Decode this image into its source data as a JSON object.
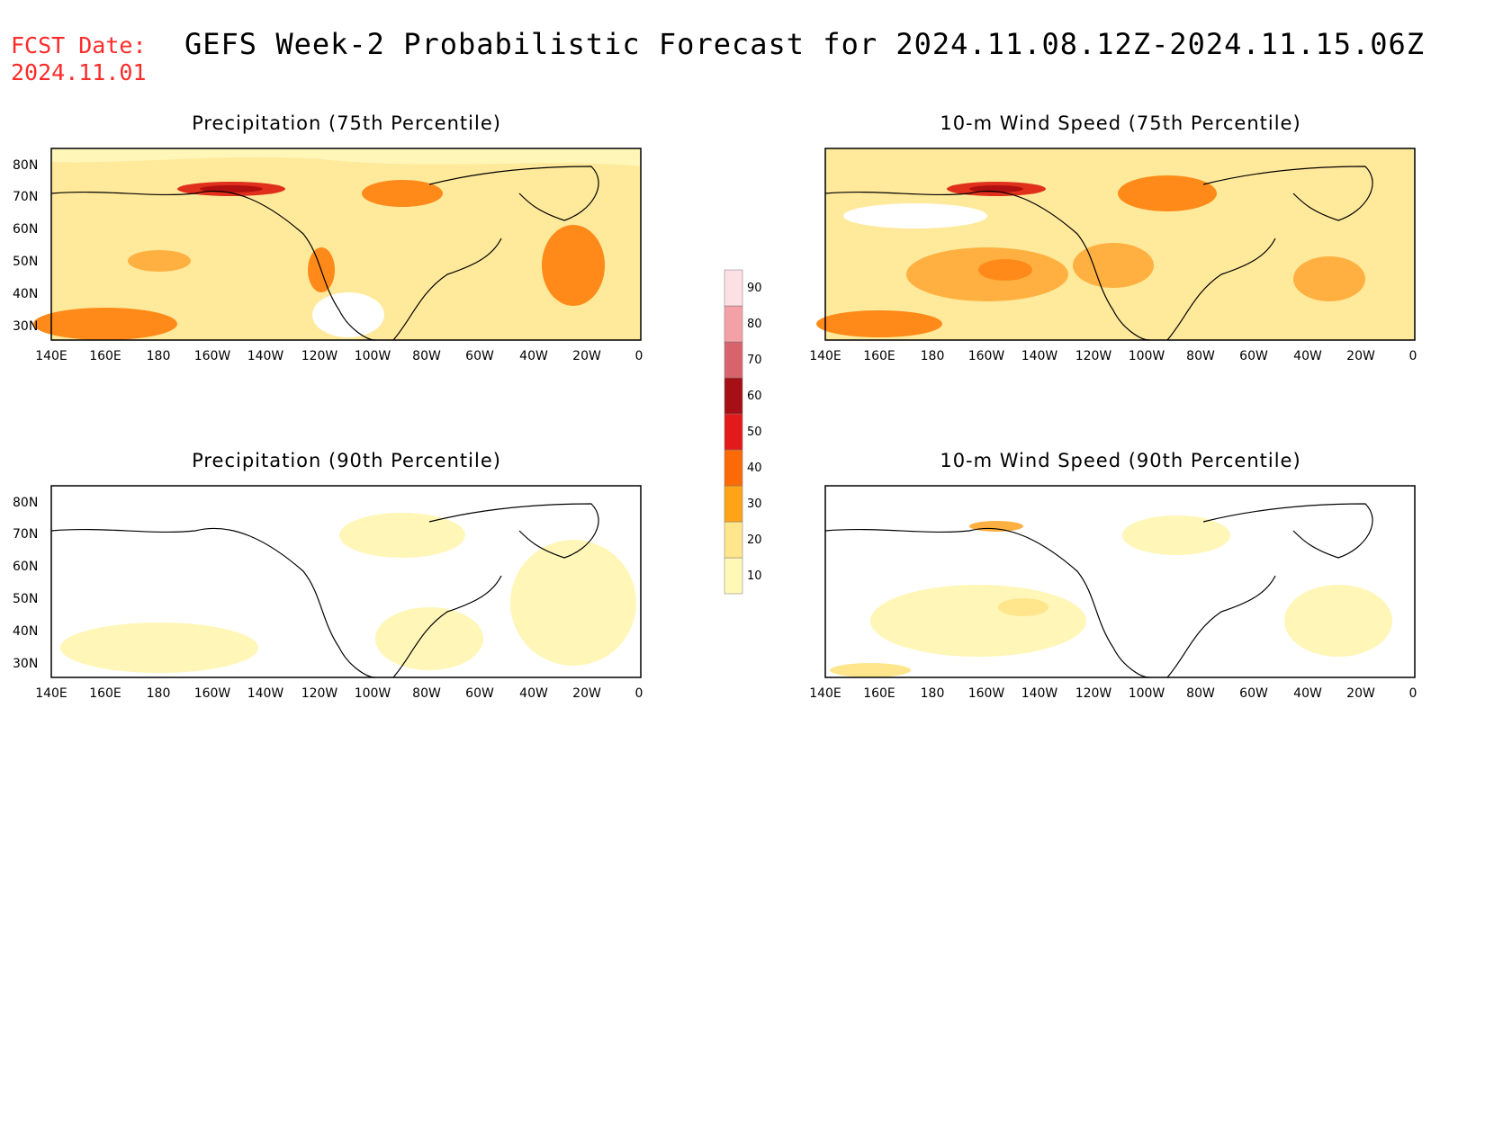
{
  "header": {
    "fcst_label": "FCST Date:",
    "fcst_date": "2024.11.01",
    "title": "GEFS Week-2 Probabilistic Forecast for 2024.11.08.12Z-2024.11.15.06Z"
  },
  "x_ticks": [
    "140E",
    "160E",
    "180",
    "160W",
    "140W",
    "120W",
    "100W",
    "80W",
    "60W",
    "40W",
    "20W",
    "0"
  ],
  "y_ticks": [
    "80N",
    "70N",
    "60N",
    "50N",
    "40N",
    "30N"
  ],
  "panels": [
    {
      "id": "precip75",
      "title": "Precipitation (75th Percentile)"
    },
    {
      "id": "wind75",
      "title": "10-m Wind Speed (75th Percentile)"
    },
    {
      "id": "precip90",
      "title": "Precipitation (90th Percentile)"
    },
    {
      "id": "wind90",
      "title": "10-m Wind Speed (90th Percentile)"
    }
  ],
  "colorbar": {
    "levels": [
      "10",
      "20",
      "30",
      "40",
      "50",
      "60",
      "70",
      "80",
      "90"
    ],
    "colors": [
      "#fff8b6",
      "#ffe58c",
      "#ffa417",
      "#fc6a07",
      "#e31a1c",
      "#a50f15",
      "#d7646c",
      "#f4a0a7",
      "#fde0e3"
    ]
  },
  "palette": {
    "base": "#ffe99a",
    "light": "#fff6b8",
    "orange": "#ffb040",
    "dark_orange": "#ff8a1a",
    "red": "#e0301c",
    "dark_red": "#b01010",
    "white": "#ffffff"
  }
}
